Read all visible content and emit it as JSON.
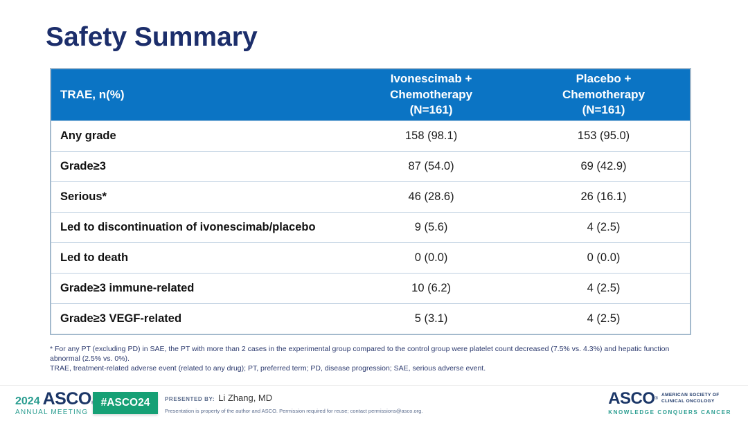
{
  "slide_title": "Safety Summary",
  "table": {
    "header": {
      "row_label_col": "TRAE, n(%)",
      "col_ivonescimab": "Ivonescimab +\nChemotherapy\n(N=161)",
      "col_placebo": "Placebo +\nChemotherapy\n(N=161)"
    },
    "rows": [
      {
        "label": "Any grade",
        "ivonescimab": "158 (98.1)",
        "placebo": "153 (95.0)"
      },
      {
        "label": "Grade≥3",
        "ivonescimab": "87 (54.0)",
        "placebo": "69 (42.9)"
      },
      {
        "label": "Serious*",
        "ivonescimab": "46 (28.6)",
        "placebo": "26 (16.1)"
      },
      {
        "label": "Led to discontinuation of ivonescimab/placebo",
        "ivonescimab": "9 (5.6)",
        "placebo": "4 (2.5)"
      },
      {
        "label": "Led to death",
        "ivonescimab": "0 (0.0)",
        "placebo": "0 (0.0)"
      },
      {
        "label": "Grade≥3 immune-related",
        "ivonescimab": "10 (6.2)",
        "placebo": "4 (2.5)"
      },
      {
        "label": "Grade≥3 VEGF-related",
        "ivonescimab": "5 (3.1)",
        "placebo": "4 (2.5)"
      }
    ]
  },
  "footnotes": {
    "line1": "* For any PT (excluding PD) in SAE, the PT with more than 2 cases in the experimental group compared to the control group were platelet count decreased (7.5% vs. 4.3%) and hepatic function abnormal (2.5% vs. 0%).",
    "line2": "TRAE, treatment-related adverse event (related to any drug); PT, preferred term; PD, disease progression; SAE, serious adverse event."
  },
  "footer": {
    "meeting_logo": {
      "year": "2024",
      "org": "ASCO",
      "reg_mark": "®",
      "subtitle": "ANNUAL MEETING"
    },
    "hashtag_badge": "#ASCO24",
    "presented_by_label": "PRESENTED BY:",
    "presenter": "Li Zhang, MD",
    "permission_note": "Presentation is property of the author and ASCO. Permission required for reuse; contact permissions@asco.org.",
    "asco_logo": {
      "org": "ASCO",
      "reg_mark": "®",
      "org_lines": "AMERICAN SOCIETY OF\nCLINICAL ONCOLOGY",
      "tagline": "KNOWLEDGE CONQUERS CANCER"
    }
  },
  "colors": {
    "title_navy": "#1c2e6b",
    "table_header_blue": "#0b74c4",
    "table_border": "#a4bacd",
    "row_divider": "#bdcfe0",
    "footnote_navy": "#2c3a6e",
    "asco_teal": "#2a9d90",
    "badge_green": "#16a075",
    "logo_navy": "#1b3667"
  }
}
